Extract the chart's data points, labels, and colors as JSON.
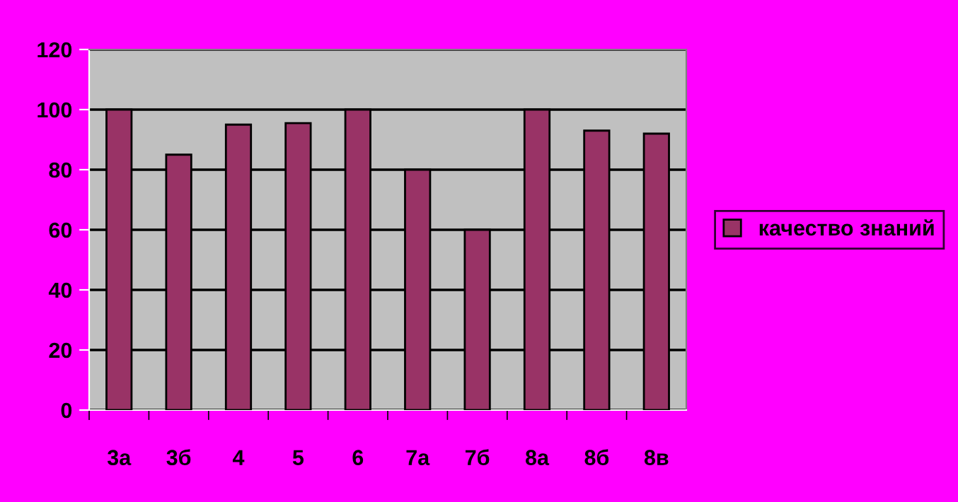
{
  "chart_data": {
    "type": "bar",
    "categories": [
      "3а",
      "3б",
      "4",
      "5",
      "6",
      "7а",
      "7б",
      "8а",
      "8б",
      "8в"
    ],
    "series": [
      {
        "name": "качество знаний",
        "color": "#993366",
        "values": [
          100,
          85,
          95,
          95.5,
          100,
          80,
          60,
          100,
          93,
          92
        ]
      }
    ],
    "ylim": [
      0,
      120
    ],
    "yticks": [
      0,
      20,
      40,
      60,
      80,
      100,
      120
    ],
    "grid": "y",
    "legend": "right"
  }
}
